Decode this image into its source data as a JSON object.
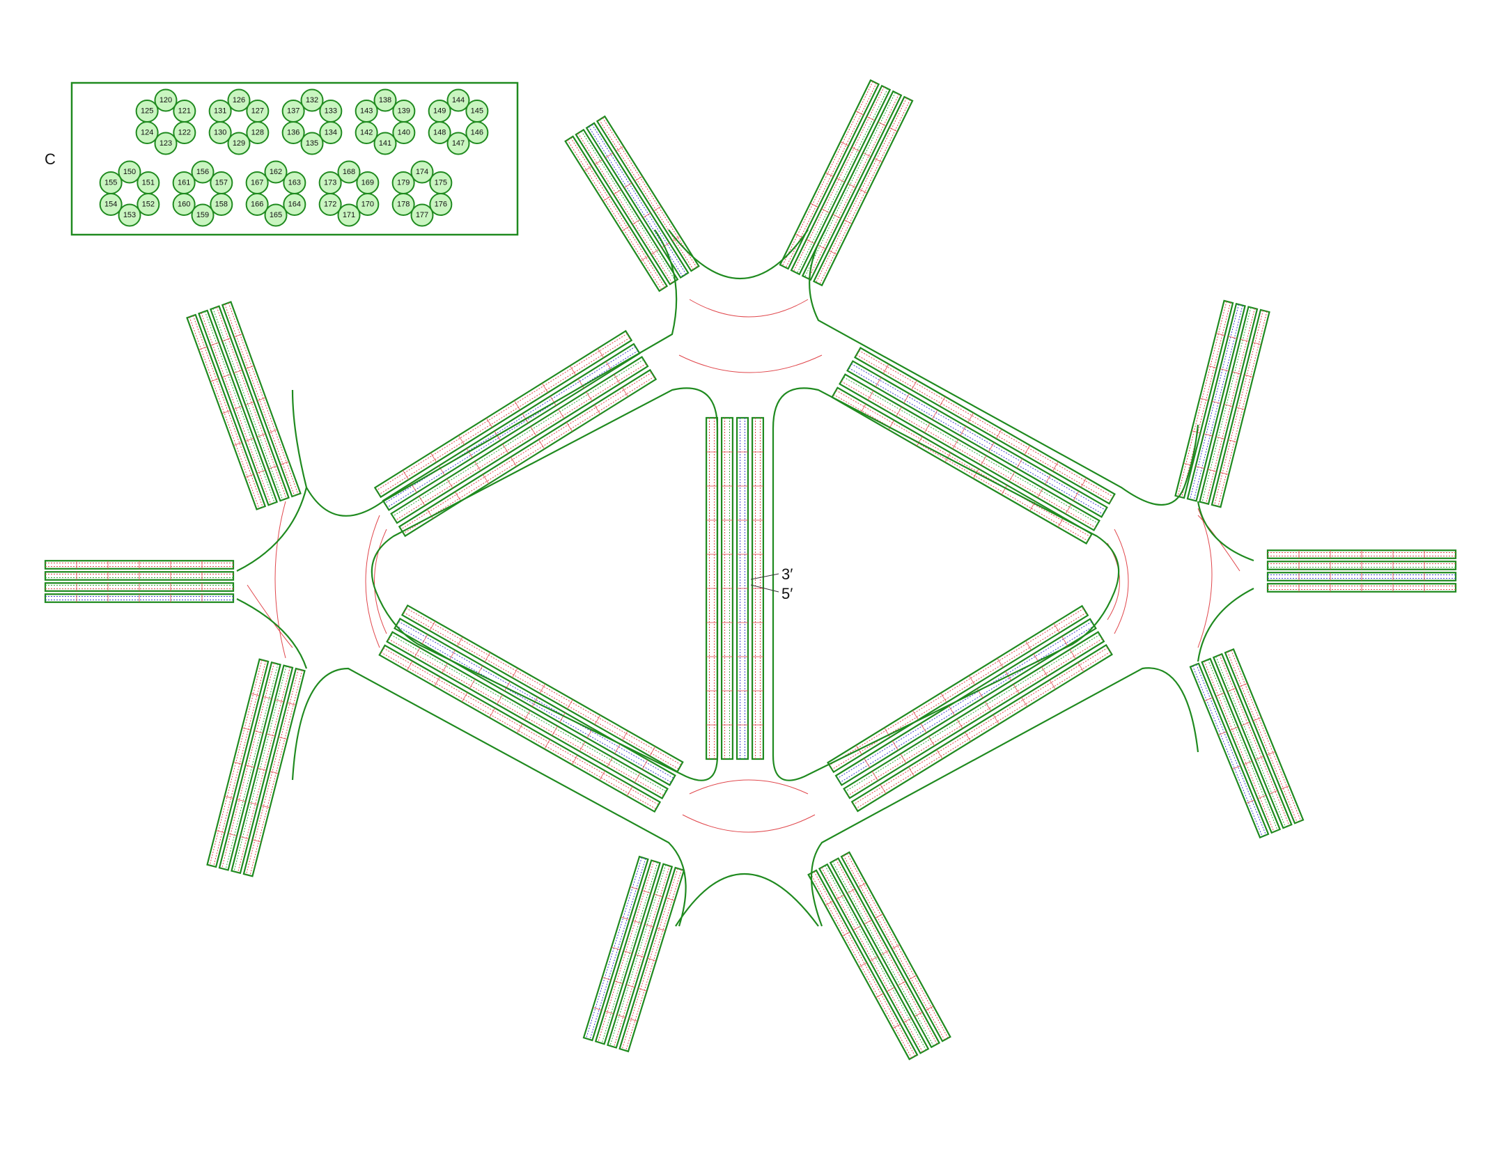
{
  "legend": {
    "panel_label": "C",
    "groups": [
      {
        "numbers": [
          "120",
          "121",
          "122",
          "123",
          "124",
          "125"
        ]
      },
      {
        "numbers": [
          "126",
          "127",
          "128",
          "129",
          "130",
          "131"
        ]
      },
      {
        "numbers": [
          "132",
          "133",
          "134",
          "135",
          "136",
          "137"
        ]
      },
      {
        "numbers": [
          "138",
          "139",
          "140",
          "141",
          "142",
          "143"
        ]
      },
      {
        "numbers": [
          "144",
          "145",
          "146",
          "147",
          "148",
          "149"
        ]
      },
      {
        "numbers": [
          "150",
          "151",
          "152",
          "153",
          "154",
          "155"
        ]
      },
      {
        "numbers": [
          "156",
          "157",
          "158",
          "159",
          "160",
          "161"
        ]
      },
      {
        "numbers": [
          "162",
          "163",
          "164",
          "165",
          "166",
          "167"
        ]
      },
      {
        "numbers": [
          "168",
          "169",
          "170",
          "171",
          "172",
          "173"
        ]
      },
      {
        "numbers": [
          "174",
          "175",
          "176",
          "177",
          "178",
          "179"
        ]
      }
    ]
  },
  "end_labels": {
    "three_prime": "3′",
    "five_prime": "5′"
  },
  "colors": {
    "outline": "#1f8a1f",
    "circle_fill": "#c9f5c0",
    "route": "#e0464b",
    "blue_strand": "#3f3fd0",
    "green_strand": "#3ca63c"
  }
}
